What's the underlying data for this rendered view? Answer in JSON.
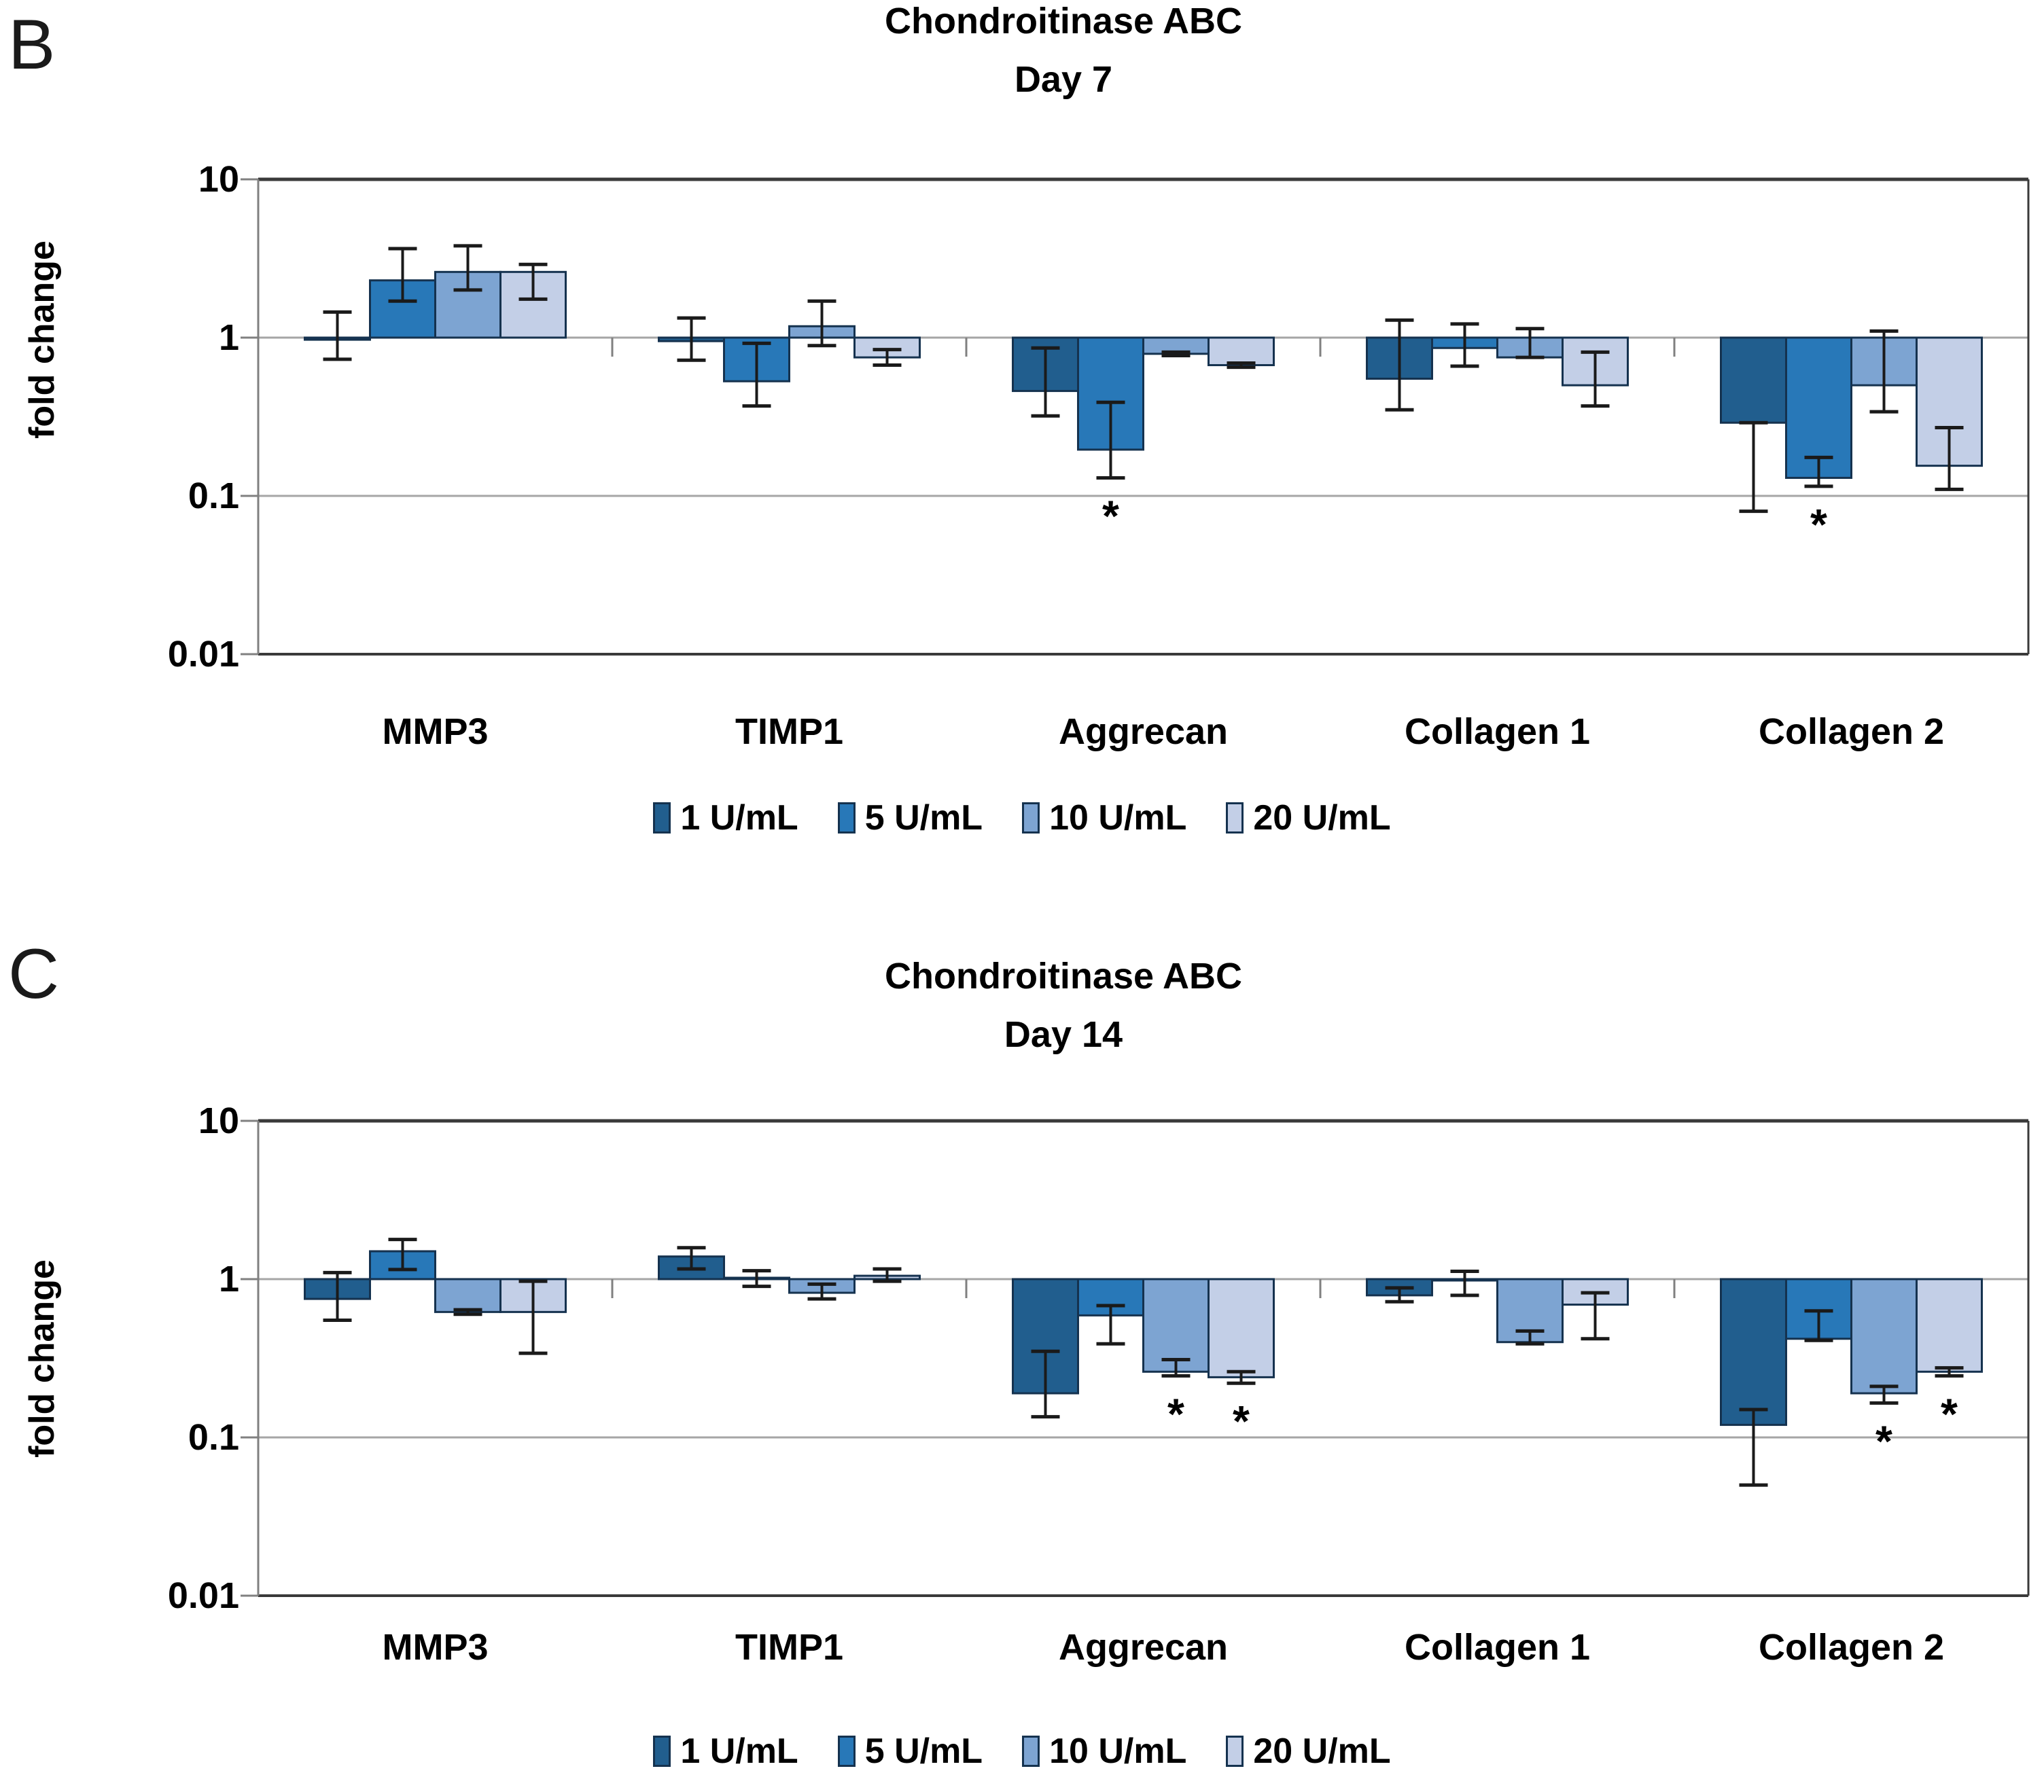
{
  "figure": {
    "background": "#FFFFFF",
    "panel_letters": [
      "B",
      "C"
    ]
  },
  "styles": {
    "bar_border": "#15324F",
    "error_bar_color": "#1A1A1A",
    "gridline_color": "#A6A6A6",
    "frame_color": "#3A3A3A",
    "axis_color": "#808080",
    "text_color": "#000000"
  },
  "chart_data": [
    {
      "type": "bar",
      "panel_letter": "B",
      "title": "Chondroitinase ABC",
      "subtitle": "Day 7",
      "ylabel": "fold change",
      "xlabel": "",
      "yscale": "log",
      "ylim": [
        0.01,
        10
      ],
      "ytick_labels": [
        "10",
        "1",
        "0.1",
        "0.01"
      ],
      "grid": true,
      "legend_position": "bottom",
      "categories": [
        "MMP3",
        "TIMP1",
        "Aggrecan",
        "Collagen 1",
        "Collagen 2"
      ],
      "series": [
        {
          "name": "1 U/mL",
          "color": "#215E8E",
          "values": [
            0.97,
            0.95,
            0.46,
            0.55,
            0.29
          ],
          "err_lo": [
            0.73,
            0.72,
            0.32,
            0.35,
            0.08
          ],
          "err_hi": [
            1.45,
            1.33,
            0.86,
            1.29,
            0.29
          ]
        },
        {
          "name": "5 U/mL",
          "color": "#2878B8",
          "values": [
            2.3,
            0.53,
            0.196,
            0.86,
            0.13
          ],
          "err_lo": [
            1.7,
            0.37,
            0.13,
            0.66,
            0.115
          ],
          "err_hi": [
            3.65,
            0.92,
            0.39,
            1.22,
            0.175
          ]
        },
        {
          "name": "10 U/mL",
          "color": "#7DA4D2",
          "values": [
            2.6,
            1.18,
            0.79,
            0.75,
            0.5
          ],
          "err_lo": [
            2.0,
            0.89,
            0.77,
            0.75,
            0.34
          ],
          "err_hi": [
            3.8,
            1.7,
            0.81,
            1.14,
            1.1
          ]
        },
        {
          "name": "20 U/mL",
          "color": "#C3CFE7",
          "values": [
            2.6,
            0.75,
            0.67,
            0.5,
            0.155
          ],
          "err_lo": [
            1.75,
            0.67,
            0.65,
            0.37,
            0.11
          ],
          "err_hi": [
            2.9,
            0.84,
            0.69,
            0.81,
            0.27
          ]
        }
      ],
      "significance": [
        {
          "category": "Aggrecan",
          "series": "5 U/mL",
          "marker": "*"
        },
        {
          "category": "Collagen 2",
          "series": "5 U/mL",
          "marker": "*"
        }
      ]
    },
    {
      "type": "bar",
      "panel_letter": "C",
      "title": "Chondroitinase ABC",
      "subtitle": "Day 14",
      "ylabel": "fold change",
      "xlabel": "",
      "yscale": "log",
      "ylim": [
        0.01,
        10
      ],
      "ytick_labels": [
        "10",
        "1",
        "0.1",
        "0.01"
      ],
      "grid": true,
      "legend_position": "bottom",
      "categories": [
        "MMP3",
        "TIMP1",
        "Aggrecan",
        "Collagen 1",
        "Collagen 2"
      ],
      "series": [
        {
          "name": "1 U/mL",
          "color": "#215E8E",
          "values": [
            0.75,
            1.39,
            0.19,
            0.79,
            0.12
          ],
          "err_lo": [
            0.55,
            1.16,
            0.135,
            0.72,
            0.05
          ],
          "err_hi": [
            1.1,
            1.58,
            0.35,
            0.88,
            0.15
          ]
        },
        {
          "name": "5 U/mL",
          "color": "#2878B8",
          "values": [
            1.5,
            1.02,
            0.59,
            1.0,
            0.42
          ],
          "err_lo": [
            1.15,
            0.9,
            0.39,
            0.79,
            0.41
          ],
          "err_hi": [
            1.78,
            1.13,
            0.68,
            1.12,
            0.63
          ]
        },
        {
          "name": "10 U/mL",
          "color": "#7DA4D2",
          "values": [
            0.62,
            0.82,
            0.26,
            0.4,
            0.19
          ],
          "err_lo": [
            0.6,
            0.75,
            0.245,
            0.39,
            0.165
          ],
          "err_hi": [
            0.64,
            0.93,
            0.31,
            0.47,
            0.21
          ]
        },
        {
          "name": "20 U/mL",
          "color": "#C3CFE7",
          "values": [
            0.62,
            1.05,
            0.24,
            0.69,
            0.26
          ],
          "err_lo": [
            0.34,
            0.97,
            0.22,
            0.42,
            0.245
          ],
          "err_hi": [
            0.97,
            1.16,
            0.26,
            0.82,
            0.275
          ]
        }
      ],
      "significance": [
        {
          "category": "Aggrecan",
          "series": "10 U/mL",
          "marker": "*"
        },
        {
          "category": "Aggrecan",
          "series": "20 U/mL",
          "marker": "*"
        },
        {
          "category": "Collagen 2",
          "series": "10 U/mL",
          "marker": "*"
        },
        {
          "category": "Collagen 2",
          "series": "20 U/mL",
          "marker": "*"
        }
      ]
    }
  ]
}
